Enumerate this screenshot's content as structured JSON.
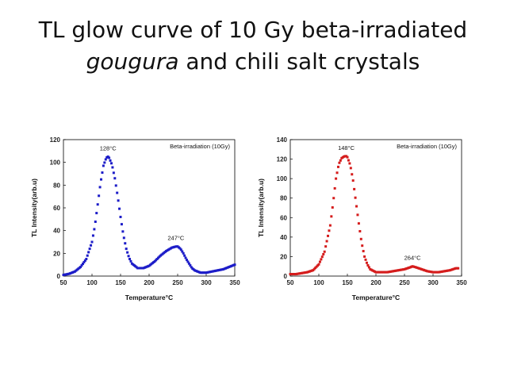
{
  "title": {
    "line1": "TL glow curve of 10 Gy beta-irradiated",
    "line2_italic": "gougura",
    "line2_rest": " and chili salt crystals"
  },
  "chart_data": [
    {
      "type": "scatter",
      "xlabel": "Temperature°C",
      "ylabel": "TL Intensity(arb.u)",
      "xlim": [
        50,
        350
      ],
      "ylim": [
        0,
        120
      ],
      "xticks": [
        50,
        100,
        150,
        200,
        250,
        300,
        350
      ],
      "yticks": [
        0,
        20,
        40,
        60,
        80,
        100,
        120
      ],
      "legend": "top-right",
      "color": "#1c1cc8",
      "series": [
        {
          "name": "Beta-irradiation (10Gy)",
          "x": [
            50,
            60,
            70,
            80,
            90,
            100,
            105,
            110,
            115,
            120,
            125,
            128,
            130,
            135,
            140,
            145,
            150,
            155,
            160,
            165,
            170,
            180,
            190,
            200,
            210,
            220,
            230,
            240,
            247,
            250,
            255,
            260,
            265,
            270,
            275,
            280,
            290,
            300,
            310,
            320,
            330,
            340,
            350
          ],
          "y": [
            1,
            2,
            4,
            8,
            15,
            30,
            44,
            63,
            82,
            97,
            104,
            105,
            104,
            98,
            86,
            70,
            52,
            36,
            24,
            16,
            11,
            7,
            7,
            9,
            13,
            18,
            22,
            25,
            26,
            26,
            24,
            20,
            15,
            11,
            7,
            5,
            3,
            3,
            4,
            5,
            6,
            8,
            10
          ]
        }
      ],
      "annotations": [
        {
          "text": "128°C",
          "x": 128,
          "y": 105
        },
        {
          "text": "247°C",
          "x": 247,
          "y": 26
        }
      ]
    },
    {
      "type": "scatter",
      "xlabel": "Temperature°C",
      "ylabel": "TL Intensity(arb.u)",
      "xlim": [
        50,
        350
      ],
      "ylim": [
        0,
        140
      ],
      "xticks": [
        50,
        100,
        150,
        200,
        250,
        300,
        350
      ],
      "yticks": [
        0,
        20,
        40,
        60,
        80,
        100,
        120,
        140
      ],
      "legend": "top-right",
      "color": "#d51c1c",
      "series": [
        {
          "name": "Beta-irradiation (10Gy)",
          "x": [
            50,
            60,
            70,
            80,
            90,
            100,
            110,
            120,
            125,
            130,
            135,
            140,
            145,
            148,
            150,
            155,
            160,
            165,
            170,
            175,
            180,
            185,
            190,
            200,
            210,
            220,
            230,
            240,
            250,
            260,
            264,
            270,
            280,
            290,
            300,
            310,
            320,
            330,
            340,
            345
          ],
          "y": [
            2,
            2,
            3,
            4,
            6,
            12,
            25,
            52,
            75,
            100,
            115,
            121,
            123,
            123,
            122,
            114,
            98,
            76,
            54,
            34,
            20,
            12,
            7,
            4,
            4,
            4,
            5,
            6,
            7,
            9,
            10,
            9,
            7,
            5,
            4,
            4,
            5,
            6,
            8,
            8
          ]
        }
      ],
      "annotations": [
        {
          "text": "148°C",
          "x": 148,
          "y": 123
        },
        {
          "text": "264°C",
          "x": 264,
          "y": 10
        }
      ]
    }
  ]
}
